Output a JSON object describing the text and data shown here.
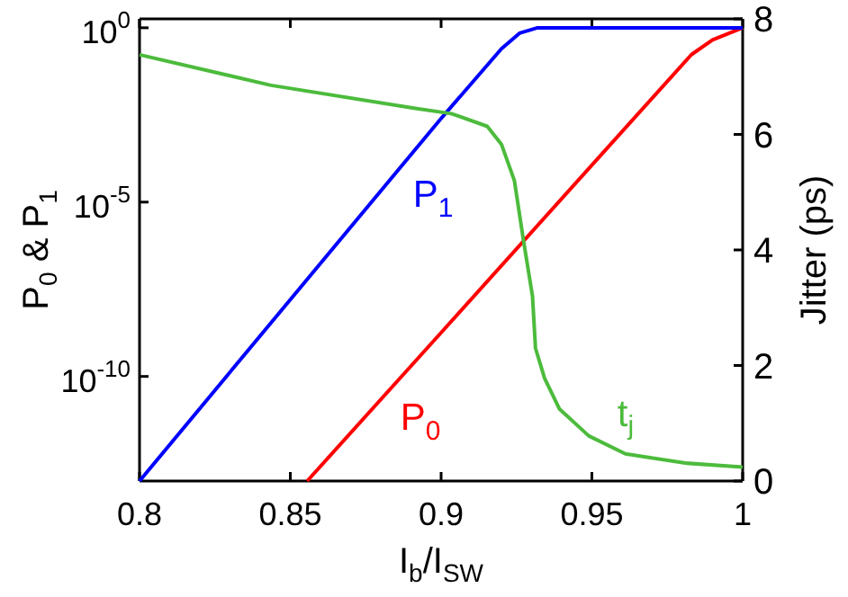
{
  "chart_data": {
    "type": "line",
    "xlabel": "I$_{b}$/I$_{SW}$",
    "ylabel": "P$_{0}$ & P$_{1}$",
    "y2label": "Jitter (ps)",
    "log": "y",
    "xlim": [
      0.8,
      1
    ],
    "xticks": [
      0.8,
      0.85,
      0.9,
      0.95,
      1
    ],
    "ylim": [
      1e-13,
      1.8
    ],
    "yticks": [
      {
        "value": 1,
        "label": "10$^{0}$"
      },
      {
        "value": 1e-05,
        "label": "10$^{-5}$"
      },
      {
        "value": 1e-10,
        "label": "10$^{-10}$"
      }
    ],
    "y2lim": [
      0,
      8
    ],
    "y2ticks": [
      0,
      2,
      4,
      6,
      8
    ],
    "grid": false,
    "legend": false,
    "line_style": "solid",
    "marker": "none",
    "series": [
      {
        "name": "P$_{0}$",
        "color": "#ff0000",
        "x": [
          0.8556,
          0.9,
          0.95,
          0.983,
          0.99,
          1
        ],
        "values": [
          1e-13,
          1.8e-09,
          0.000115,
          0.17,
          0.45,
          1
        ]
      },
      {
        "name": "P$_{1}$",
        "color": "#0000ff",
        "x": [
          0.8,
          0.85,
          0.9,
          0.92,
          0.926,
          0.932,
          1
        ],
        "values": [
          1e-13,
          1.6e-08,
          0.0025,
          0.25,
          0.7,
          1,
          1
        ]
      },
      {
        "name": "t$_{j}$",
        "color": "#4cbb3c",
        "axis": "y2",
        "x": [
          0.8,
          0.8436,
          0.8914,
          0.9034,
          0.9153,
          0.92,
          0.9243,
          0.9273,
          0.9303,
          0.9313,
          0.9343,
          0.9392,
          0.949,
          0.9611,
          0.981,
          1
        ],
        "values": [
          7.38,
          6.85,
          6.45,
          6.36,
          6.14,
          5.83,
          5.2,
          4.17,
          3.2,
          2.3,
          1.78,
          1.25,
          0.78,
          0.47,
          0.31,
          0.24
        ]
      }
    ]
  }
}
